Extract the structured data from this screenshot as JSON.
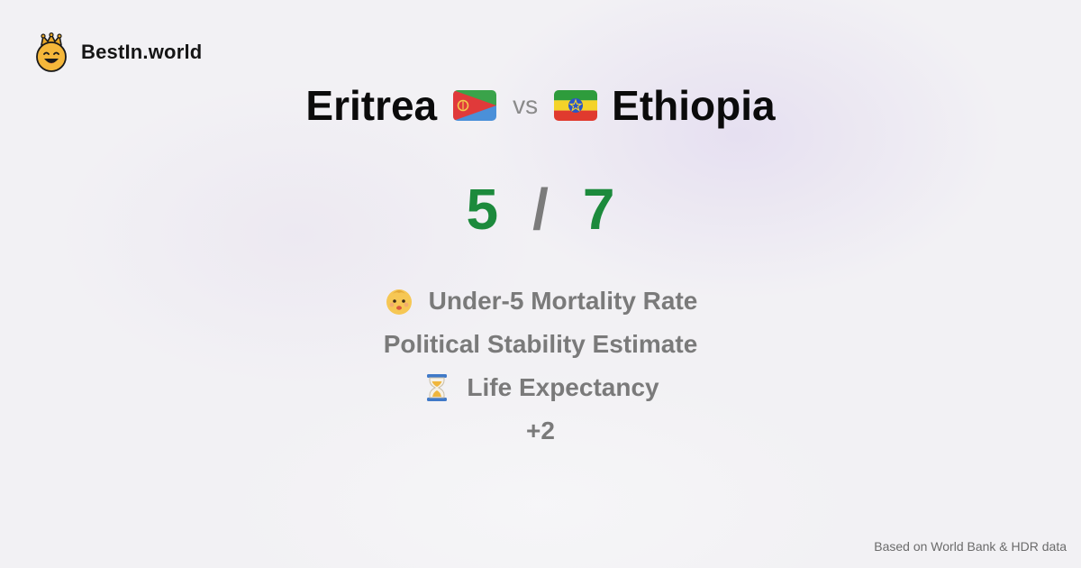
{
  "brand": {
    "name": "BestIn.world",
    "logo_icon": "crowned-smiley-icon"
  },
  "comparison": {
    "left_country": "Eritrea",
    "left_flag_icon": "eritrea-flag-icon",
    "vs_label": "vs",
    "right_country": "Ethiopia",
    "right_flag_icon": "ethiopia-flag-icon"
  },
  "score": {
    "left": "5",
    "separator": "/",
    "right": "7",
    "color": "#1c8a3c"
  },
  "metrics": [
    {
      "label": "Under-5 Mortality Rate",
      "icon": "baby-icon"
    },
    {
      "label": "Political Stability Estimate",
      "icon": ""
    },
    {
      "label": "Life Expectancy",
      "icon": "hourglass-icon"
    }
  ],
  "more_label": "+2",
  "footer": {
    "source": "Based on World Bank & HDR data"
  }
}
